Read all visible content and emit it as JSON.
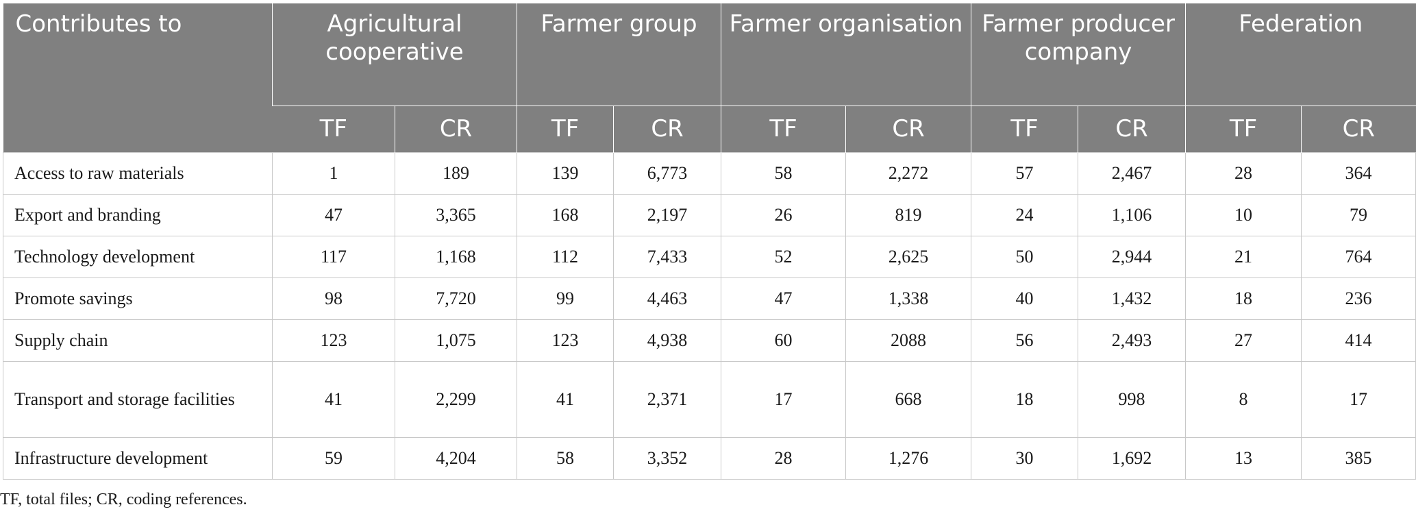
{
  "table": {
    "corner_header": "Contributes to",
    "groups": [
      "Agricultural cooperative",
      "Farmer group",
      "Farmer organisation",
      "Farmer producer company",
      "Federation"
    ],
    "sub_headers": [
      "TF",
      "CR",
      "TF",
      "CR",
      "TF",
      "CR",
      "TF",
      "CR",
      "TF",
      "CR"
    ],
    "rows": [
      {
        "label": "Access to raw materials",
        "cells": [
          "1",
          "189",
          "139",
          "6,773",
          "58",
          "2,272",
          "57",
          "2,467",
          "28",
          "364"
        ]
      },
      {
        "label": "Export and branding",
        "cells": [
          "47",
          "3,365",
          "168",
          "2,197",
          "26",
          "819",
          "24",
          "1,106",
          "10",
          "79"
        ]
      },
      {
        "label": "Technology development",
        "cells": [
          "117",
          "1,168",
          "112",
          "7,433",
          "52",
          "2,625",
          "50",
          "2,944",
          "21",
          "764"
        ]
      },
      {
        "label": "Promote savings",
        "cells": [
          "98",
          "7,720",
          "99",
          "4,463",
          "47",
          "1,338",
          "40",
          "1,432",
          "18",
          "236"
        ]
      },
      {
        "label": "Supply chain",
        "cells": [
          "123",
          "1,075",
          "123",
          "4,938",
          "60",
          "2088",
          "56",
          "2,493",
          "27",
          "414"
        ]
      },
      {
        "label": "Transport and storage facilities",
        "cells": [
          "41",
          "2,299",
          "41",
          "2,371",
          "17",
          "668",
          "18",
          "998",
          "8",
          "17"
        ]
      },
      {
        "label": "Infrastructure development",
        "cells": [
          "59",
          "4,204",
          "58",
          "3,352",
          "28",
          "1,276",
          "30",
          "1,692",
          "13",
          "385"
        ]
      }
    ]
  },
  "footnote": "TF, total files; CR, coding references."
}
